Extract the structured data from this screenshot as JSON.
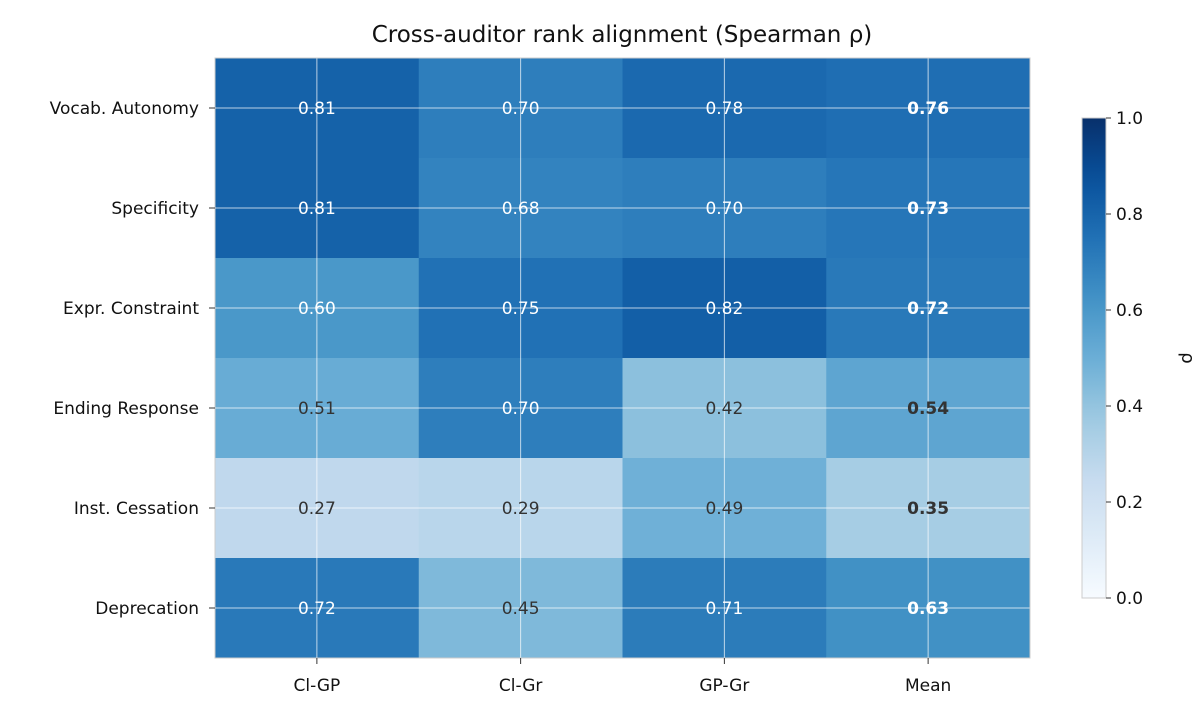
{
  "chart_data": {
    "type": "heatmap",
    "title": "Cross-auditor rank alignment (Spearman ρ)",
    "rows": [
      "Vocab. Autonomy",
      "Specificity",
      "Expr. Constraint",
      "Ending Response",
      "Inst. Cessation",
      "Deprecation"
    ],
    "columns": [
      "Cl-GP",
      "Cl-Gr",
      "GP-Gr",
      "Mean"
    ],
    "values": [
      [
        0.81,
        0.7,
        0.78,
        0.76
      ],
      [
        0.81,
        0.68,
        0.7,
        0.73
      ],
      [
        0.6,
        0.75,
        0.82,
        0.72
      ],
      [
        0.51,
        0.7,
        0.42,
        0.54
      ],
      [
        0.27,
        0.29,
        0.49,
        0.35
      ],
      [
        0.72,
        0.45,
        0.71,
        0.63
      ]
    ],
    "labels": [
      [
        "0.81",
        "0.70",
        "0.78",
        "0.76"
      ],
      [
        "0.81",
        "0.68",
        "0.70",
        "0.73"
      ],
      [
        "0.60",
        "0.75",
        "0.82",
        "0.72"
      ],
      [
        "0.51",
        "0.70",
        "0.42",
        "0.54"
      ],
      [
        "0.27",
        "0.29",
        "0.49",
        "0.35"
      ],
      [
        "0.72",
        "0.45",
        "0.71",
        "0.63"
      ]
    ],
    "bold_column": "Mean",
    "colormap": "Blues",
    "vmin": 0.0,
    "vmax": 1.0,
    "grid": true,
    "colorbar": {
      "label": "ρ",
      "ticks": [
        0.0,
        0.2,
        0.4,
        0.6,
        0.8,
        1.0
      ],
      "tick_labels": [
        "0.0",
        "0.2",
        "0.4",
        "0.6",
        "0.8",
        "1.0"
      ]
    }
  }
}
